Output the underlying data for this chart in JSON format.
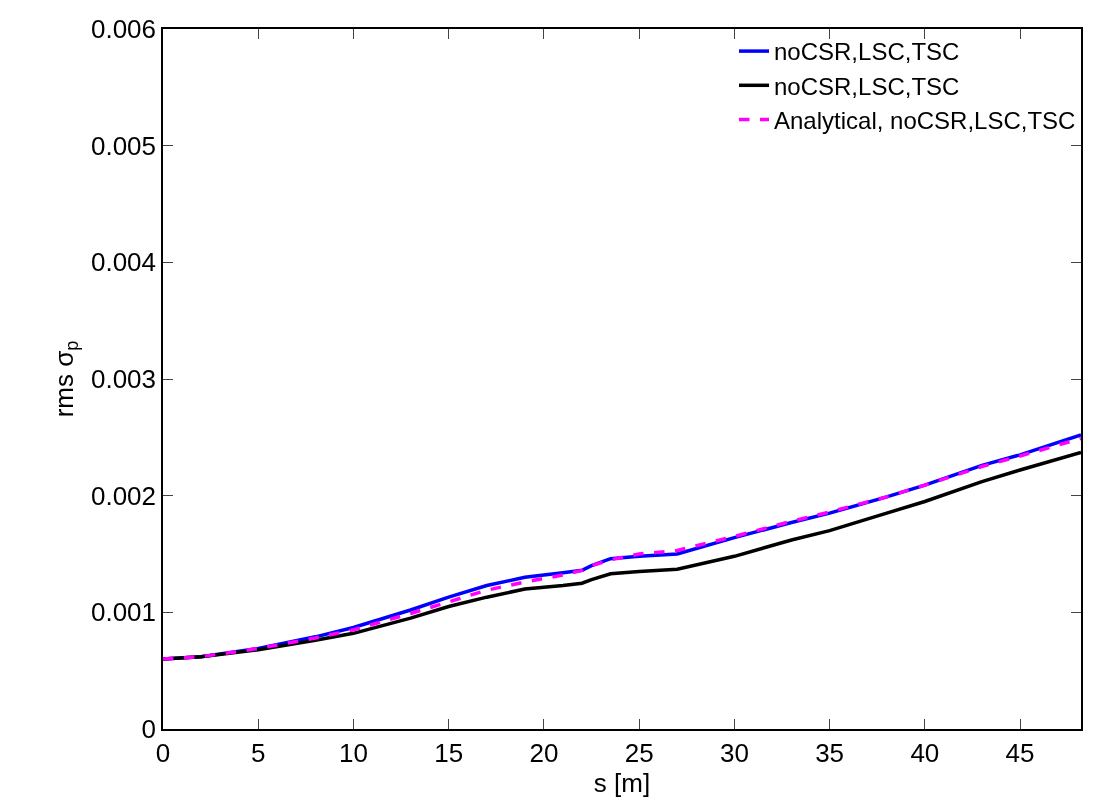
{
  "chart_data": {
    "type": "line",
    "xlabel": "s [m]",
    "ylabel": "rms σ$_{p}$",
    "xlim": [
      0,
      48.2
    ],
    "ylim": [
      0,
      0.006
    ],
    "xticks": [
      0,
      5,
      10,
      15,
      20,
      25,
      30,
      35,
      40,
      45
    ],
    "yticks": [
      0,
      0.001,
      0.002,
      0.003,
      0.004,
      0.005,
      0.006
    ],
    "grid": false,
    "legend": "top right",
    "x": [
      0,
      2,
      5,
      8,
      10,
      13,
      15,
      17,
      19,
      21,
      22,
      22.5,
      23.5,
      25,
      27,
      30,
      33,
      35,
      38,
      40,
      43,
      45,
      48.2
    ],
    "series": [
      {
        "name": "noCSR,LSC,TSC",
        "color": "#0000ff",
        "line_style": "solid",
        "values": [
          0.0006,
          0.00062,
          0.00069,
          0.00079,
          0.00087,
          0.00102,
          0.00113,
          0.00123,
          0.0013,
          0.00134,
          0.00136,
          0.0014,
          0.00146,
          0.00148,
          0.0015,
          0.00164,
          0.00177,
          0.00185,
          0.00199,
          0.00209,
          0.00226,
          0.00235,
          0.00252
        ]
      },
      {
        "name": "noCSR,LSC,TSC",
        "color": "#000000",
        "line_style": "solid",
        "values": [
          0.0006,
          0.00062,
          0.00068,
          0.00076,
          0.00082,
          0.00095,
          0.00105,
          0.00113,
          0.0012,
          0.00123,
          0.00125,
          0.00128,
          0.00133,
          0.00135,
          0.00137,
          0.00148,
          0.00162,
          0.0017,
          0.00185,
          0.00195,
          0.00212,
          0.00222,
          0.00237
        ]
      },
      {
        "name": "Analytical, noCSR,LSC,TSC",
        "color": "#ff00ff",
        "line_style": "dashed",
        "values": [
          0.0006,
          0.00062,
          0.00069,
          0.00078,
          0.00085,
          0.00099,
          0.00109,
          0.00119,
          0.00126,
          0.00132,
          0.00136,
          0.0014,
          0.00145,
          0.0015,
          0.00153,
          0.00165,
          0.00178,
          0.00186,
          0.00199,
          0.00209,
          0.00225,
          0.00234,
          0.00249
        ]
      }
    ]
  }
}
